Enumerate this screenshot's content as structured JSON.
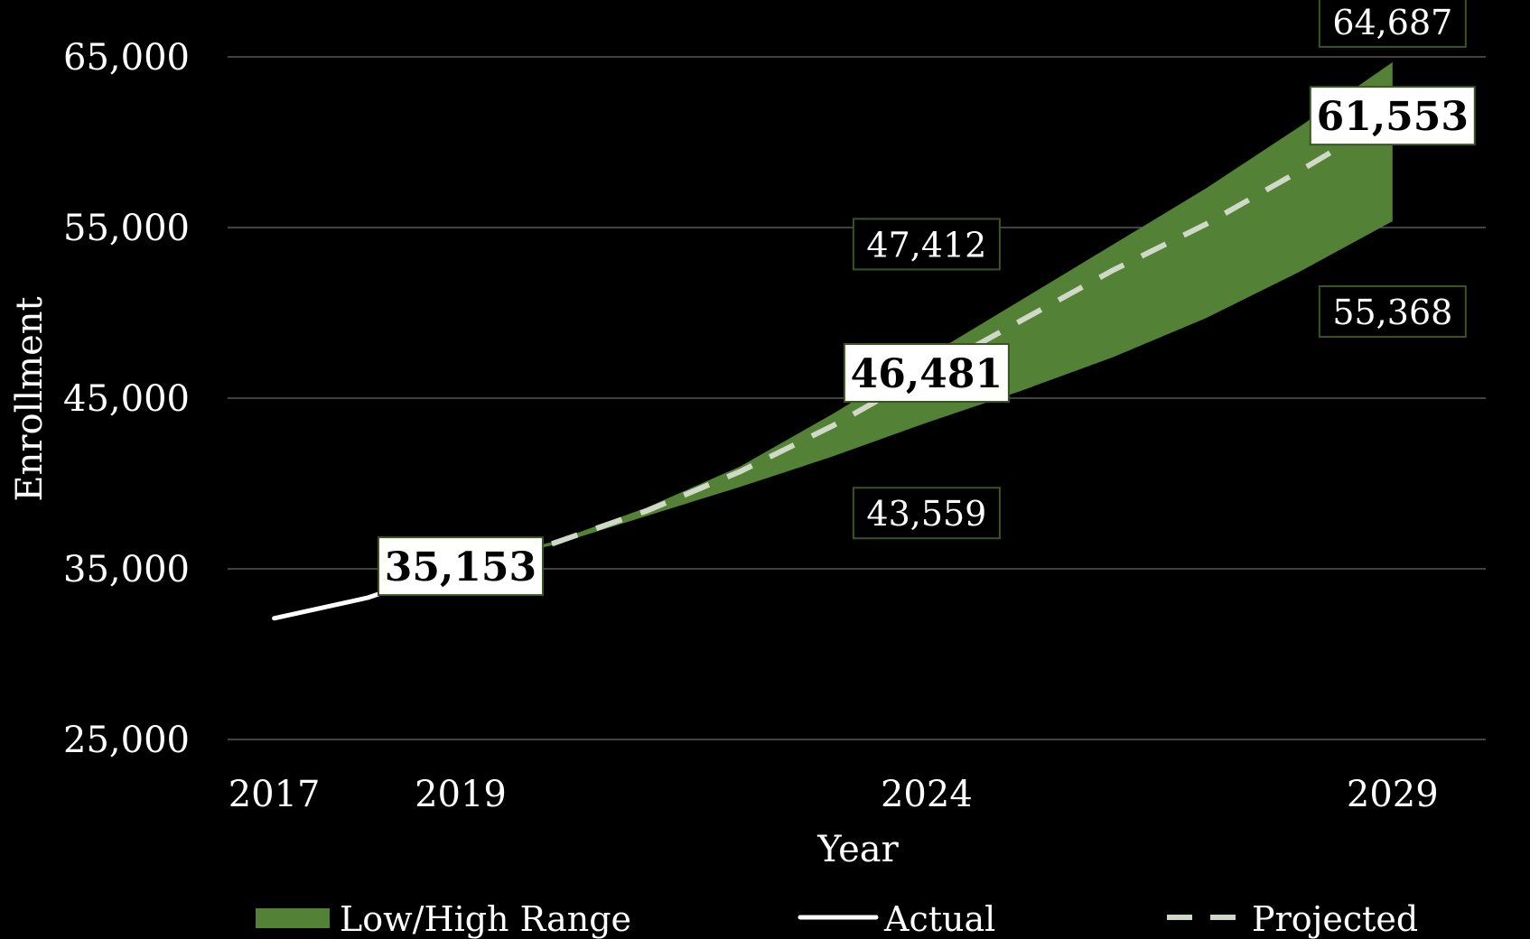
{
  "chart_data": {
    "type": "area",
    "title": "",
    "xlabel": "Year",
    "ylabel": "Enrollment",
    "xlim": [
      2016.5,
      2030
    ],
    "ylim": [
      25000,
      65000
    ],
    "y_ticks": [
      25000,
      35000,
      45000,
      55000,
      65000
    ],
    "y_tick_labels": [
      "25,000",
      "35,000",
      "45,000",
      "55,000",
      "65,000"
    ],
    "x_ticks": [
      2017,
      2019,
      2024,
      2029
    ],
    "x_tick_labels": [
      "2017",
      "2019",
      "2024",
      "2029"
    ],
    "grid": "horizontal",
    "legend_position": "bottom",
    "colors": {
      "background": "#000000",
      "range_fill": "#538135",
      "actual_line": "#ffffff",
      "projected_line": "#d0d8c8",
      "grid": "#595959",
      "label_border": "#375623"
    },
    "series": [
      {
        "name": "Low/High Range",
        "kind": "band",
        "x": [
          2019,
          2020,
          2021,
          2022,
          2023,
          2024,
          2025,
          2026,
          2027,
          2028,
          2029
        ],
        "low": [
          35153,
          36400,
          38100,
          39800,
          41600,
          43559,
          45400,
          47400,
          49700,
          52400,
          55368
        ],
        "high": [
          35153,
          36600,
          38600,
          41000,
          44100,
          47412,
          50700,
          54000,
          57300,
          60900,
          64687
        ]
      },
      {
        "name": "Actual",
        "kind": "line",
        "x": [
          2017,
          2018,
          2019
        ],
        "values": [
          32100,
          33300,
          35153
        ]
      },
      {
        "name": "Projected",
        "kind": "dashed-line",
        "x": [
          2019,
          2020,
          2021,
          2022,
          2023,
          2024,
          2025,
          2026,
          2027,
          2028,
          2029
        ],
        "values": [
          35153,
          36500,
          38400,
          40700,
          43400,
          46481,
          49500,
          52500,
          55200,
          58300,
          61553
        ]
      }
    ],
    "data_labels": [
      {
        "text": "35,153",
        "x": 2019,
        "y": 35153,
        "style": "big"
      },
      {
        "text": "46,481",
        "x": 2024,
        "y": 46481,
        "style": "big"
      },
      {
        "text": "61,553",
        "x": 2029,
        "y": 61553,
        "style": "big"
      },
      {
        "text": "47,412",
        "x": 2024,
        "y": 47412,
        "style": "small"
      },
      {
        "text": "43,559",
        "x": 2024,
        "y": 43559,
        "style": "small"
      },
      {
        "text": "64,687",
        "x": 2029,
        "y": 64687,
        "style": "small"
      },
      {
        "text": "55,368",
        "x": 2029,
        "y": 55368,
        "style": "small"
      }
    ]
  }
}
